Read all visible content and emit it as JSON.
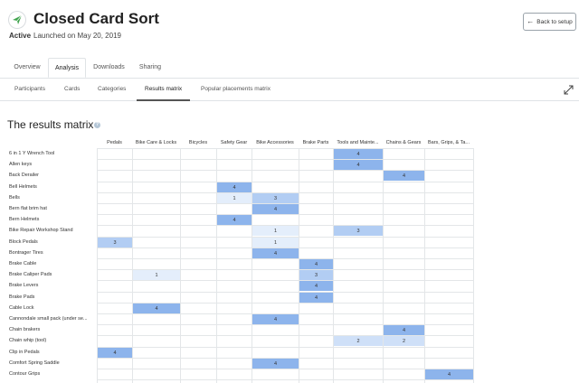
{
  "header": {
    "title": "Closed Card Sort",
    "status": "Active",
    "launched": "Launched on May 20, 2019",
    "back_label": "Back to setup"
  },
  "tabs": [
    {
      "label": "Overview",
      "active": false
    },
    {
      "label": "Analysis",
      "active": true
    },
    {
      "label": "Downloads",
      "active": false
    },
    {
      "label": "Sharing",
      "active": false
    }
  ],
  "subtabs": [
    {
      "label": "Participants",
      "active": false
    },
    {
      "label": "Cards",
      "active": false
    },
    {
      "label": "Categories",
      "active": false
    },
    {
      "label": "Results matrix",
      "active": true
    },
    {
      "label": "Popular placements matrix",
      "active": false
    }
  ],
  "section_title": "The results matrix",
  "matrix": {
    "columns": [
      "Pedals",
      "Bike Care & Locks",
      "Bicycles",
      "Safety Gear",
      "Bike Accessories",
      "Brake Parts",
      "Tools and Mainte...",
      "Chains & Gears",
      "Bars, Grips, & Ta..."
    ],
    "rows": [
      {
        "label": "6 in 1 Y Wrench Tool",
        "cells": [
          null,
          null,
          null,
          null,
          null,
          null,
          4,
          null,
          null
        ]
      },
      {
        "label": "Allen keys",
        "cells": [
          null,
          null,
          null,
          null,
          null,
          null,
          4,
          null,
          null
        ]
      },
      {
        "label": "Back Derailer",
        "cells": [
          null,
          null,
          null,
          null,
          null,
          null,
          null,
          4,
          null
        ]
      },
      {
        "label": "Bell Helmets",
        "cells": [
          null,
          null,
          null,
          4,
          null,
          null,
          null,
          null,
          null
        ]
      },
      {
        "label": "Bells",
        "cells": [
          null,
          null,
          null,
          1,
          3,
          null,
          null,
          null,
          null
        ]
      },
      {
        "label": "Bern flat brim hat",
        "cells": [
          null,
          null,
          null,
          null,
          4,
          null,
          null,
          null,
          null
        ]
      },
      {
        "label": "Bern Helmets",
        "cells": [
          null,
          null,
          null,
          4,
          null,
          null,
          null,
          null,
          null
        ]
      },
      {
        "label": "Bike Repair Workshop Stand",
        "cells": [
          null,
          null,
          null,
          null,
          1,
          null,
          3,
          null,
          null
        ]
      },
      {
        "label": "Block Pedals",
        "cells": [
          3,
          null,
          null,
          null,
          1,
          null,
          null,
          null,
          null
        ]
      },
      {
        "label": "Bontrager Tires",
        "cells": [
          null,
          null,
          null,
          null,
          4,
          null,
          null,
          null,
          null
        ]
      },
      {
        "label": "Brake Cable",
        "cells": [
          null,
          null,
          null,
          null,
          null,
          4,
          null,
          null,
          null
        ]
      },
      {
        "label": "Brake Caliper Pads",
        "cells": [
          null,
          1,
          null,
          null,
          null,
          3,
          null,
          null,
          null
        ]
      },
      {
        "label": "Brake Levers",
        "cells": [
          null,
          null,
          null,
          null,
          null,
          4,
          null,
          null,
          null
        ]
      },
      {
        "label": "Brake Pads",
        "cells": [
          null,
          null,
          null,
          null,
          null,
          4,
          null,
          null,
          null
        ]
      },
      {
        "label": "Cable Lock",
        "cells": [
          null,
          4,
          null,
          null,
          null,
          null,
          null,
          null,
          null
        ]
      },
      {
        "label": "Cannondale small pack (under se...",
        "cells": [
          null,
          null,
          null,
          null,
          4,
          null,
          null,
          null,
          null
        ]
      },
      {
        "label": "Chain brakers",
        "cells": [
          null,
          null,
          null,
          null,
          null,
          null,
          null,
          4,
          null
        ]
      },
      {
        "label": "Chain whip (tool)",
        "cells": [
          null,
          null,
          null,
          null,
          null,
          null,
          2,
          2,
          null
        ]
      },
      {
        "label": "Clip in Pedals",
        "cells": [
          4,
          null,
          null,
          null,
          null,
          null,
          null,
          null,
          null
        ]
      },
      {
        "label": "Comfort Spring Saddle",
        "cells": [
          null,
          null,
          null,
          null,
          4,
          null,
          null,
          null,
          null
        ]
      },
      {
        "label": "Contour Grips",
        "cells": [
          null,
          null,
          null,
          null,
          null,
          null,
          null,
          null,
          4
        ]
      }
    ]
  },
  "colors": {
    "c4": "#8db4ec",
    "c3": "#b2cdf3",
    "c2": "#cfe0f8",
    "c1": "#e4eefb",
    "accent": "#5cb85c"
  },
  "icons": {
    "logo": "paper-plane-logo-icon",
    "back": "arrow-left-icon",
    "expand": "expand-arrows-icon",
    "help": "question-circle-icon"
  }
}
